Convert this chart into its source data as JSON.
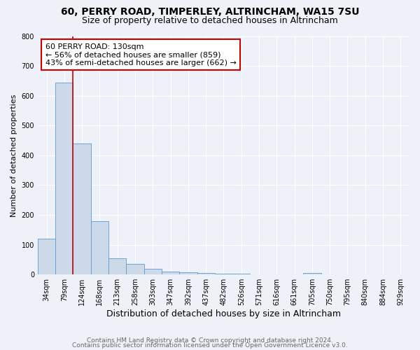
{
  "title": "60, PERRY ROAD, TIMPERLEY, ALTRINCHAM, WA15 7SU",
  "subtitle": "Size of property relative to detached houses in Altrincham",
  "xlabel": "Distribution of detached houses by size in Altrincham",
  "ylabel": "Number of detached properties",
  "bar_color": "#ccd9e8",
  "bar_edge_color": "#5b9bd5",
  "background_color": "#eef2f8",
  "grid_color": "#ffffff",
  "bin_labels": [
    "34sqm",
    "79sqm",
    "124sqm",
    "168sqm",
    "213sqm",
    "258sqm",
    "303sqm",
    "347sqm",
    "392sqm",
    "437sqm",
    "482sqm",
    "526sqm",
    "571sqm",
    "616sqm",
    "661sqm",
    "705sqm",
    "750sqm",
    "795sqm",
    "840sqm",
    "884sqm",
    "929sqm"
  ],
  "bar_heights": [
    120,
    645,
    440,
    178,
    55,
    35,
    20,
    10,
    8,
    5,
    3,
    2,
    1,
    0,
    1,
    5,
    0,
    0,
    0,
    0,
    0
  ],
  "vline_x": 2,
  "vline_color": "#cc0000",
  "annotation_text": "60 PERRY ROAD: 130sqm\n← 56% of detached houses are smaller (859)\n43% of semi-detached houses are larger (662) →",
  "annotation_box_color": "#ffffff",
  "annotation_box_edge": "#cc0000",
  "ylim": [
    0,
    800
  ],
  "yticks": [
    0,
    100,
    200,
    300,
    400,
    500,
    600,
    700,
    800
  ],
  "footer1": "Contains HM Land Registry data © Crown copyright and database right 2024.",
  "footer2": "Contains public sector information licensed under the Open Government Licence v3.0.",
  "title_fontsize": 10,
  "subtitle_fontsize": 9,
  "xlabel_fontsize": 9,
  "ylabel_fontsize": 8,
  "tick_fontsize": 7,
  "annotation_fontsize": 8,
  "footer_fontsize": 6.5
}
